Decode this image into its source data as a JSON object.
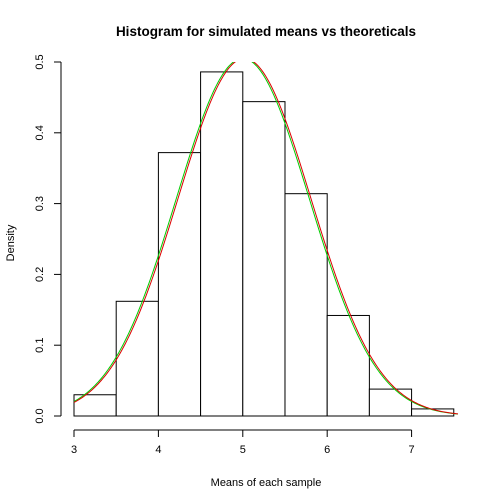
{
  "chart_data": {
    "type": "bar",
    "title": "Histogram for simulated means vs theoreticals",
    "xlabel": "Means of each sample",
    "ylabel": "Density",
    "xlim": [
      3,
      7.55
    ],
    "ylim": [
      0,
      0.5
    ],
    "xticks": [
      "3",
      "4",
      "5",
      "6",
      "7"
    ],
    "yticks": [
      "0.0",
      "0.1",
      "0.2",
      "0.3",
      "0.4",
      "0.5"
    ],
    "bins": [
      {
        "x0": 3.0,
        "x1": 3.5,
        "density": 0.03
      },
      {
        "x0": 3.5,
        "x1": 4.0,
        "density": 0.162
      },
      {
        "x0": 4.0,
        "x1": 4.5,
        "density": 0.372
      },
      {
        "x0": 4.5,
        "x1": 5.0,
        "density": 0.486
      },
      {
        "x0": 5.0,
        "x1": 5.5,
        "density": 0.444
      },
      {
        "x0": 5.5,
        "x1": 6.0,
        "density": 0.314
      },
      {
        "x0": 6.0,
        "x1": 6.5,
        "density": 0.142
      },
      {
        "x0": 6.5,
        "x1": 7.0,
        "density": 0.038
      },
      {
        "x0": 7.0,
        "x1": 7.5,
        "density": 0.01
      }
    ],
    "curves": [
      {
        "color": "#00cc00",
        "type": "normal-density",
        "mean": 5.0,
        "sd": 0.79
      },
      {
        "color": "#dd0000",
        "type": "kernel-density",
        "mean": 5.02,
        "sd": 0.79
      }
    ],
    "grid": false,
    "legend": "none"
  },
  "colors": {
    "bar_stroke": "#000000",
    "bar_fill": "#ffffff",
    "theoretical_curve": "#00cc00",
    "simulated_curve": "#dd0000"
  }
}
